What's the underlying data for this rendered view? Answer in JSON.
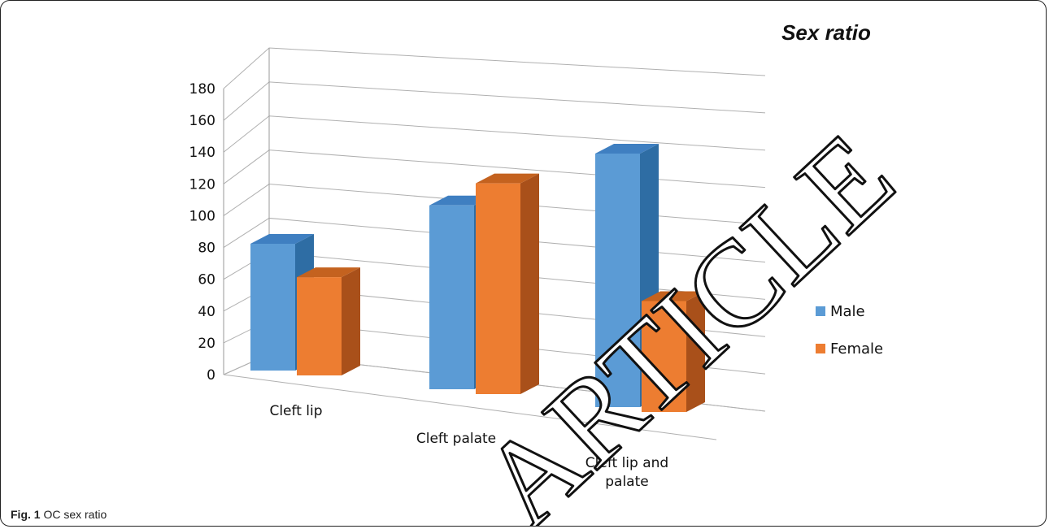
{
  "figure": {
    "caption_label": "Fig. 1",
    "caption_text": "OC sex ratio"
  },
  "watermark": {
    "text": "ARTICLE"
  },
  "chart_data": {
    "type": "bar",
    "style": "3d-clustered-column",
    "title": "Sex ratio",
    "xlabel": "",
    "ylabel": "",
    "categories": [
      "Cleft lip",
      "Cleft palate",
      "Cleft lip and palate"
    ],
    "series": [
      {
        "name": "Male",
        "values": [
          80,
          116,
          160
        ],
        "color": "#5b9bd5",
        "side_color": "#2e6da4",
        "top_color": "#3f7fc1"
      },
      {
        "name": "Female",
        "values": [
          62,
          133,
          70
        ],
        "color": "#ed7d31",
        "side_color": "#a9501a",
        "top_color": "#c4621f"
      }
    ],
    "ylim": [
      0,
      180
    ],
    "yticks": [
      0,
      20,
      40,
      60,
      80,
      100,
      120,
      140,
      160,
      180
    ],
    "grid": true,
    "legend_position": "right"
  }
}
